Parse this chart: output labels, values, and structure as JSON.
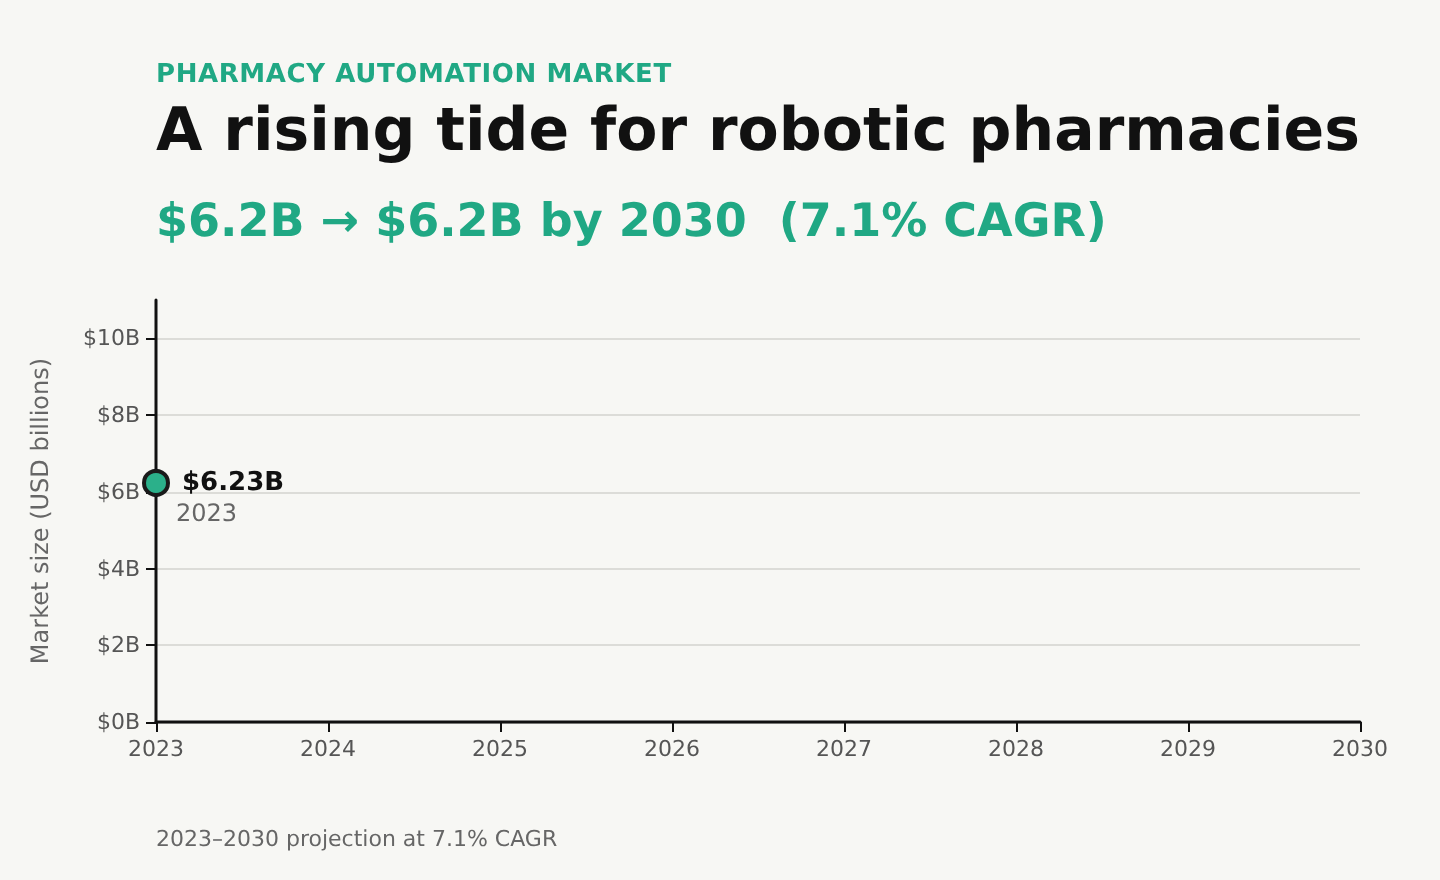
{
  "chart_data": {
    "type": "line",
    "title": "A rising tide for robotic pharmacies",
    "subtitle": "$6.2B → $6.2B by 2030  (7.1% CAGR)",
    "ylabel": "Market size (USD billions)",
    "annotations": [
      "PHARMACY AUTOMATION MARKET",
      "2023–2030 projection at 7.1% CAGR",
      {
        "text": "2023",
        "x": 2023,
        "y": 6.23
      }
    ],
    "x": [
      2023
    ],
    "series": [
      {
        "color": "#2bb08a",
        "values": [
          6.23
        ],
        "value_labels": [
          "$6.23B"
        ]
      }
    ],
    "xlim": [
      2023,
      2030
    ],
    "xticks": [
      2023,
      2024,
      2025,
      2026,
      2027,
      2028,
      2029,
      2030
    ],
    "ylim": [
      0,
      11
    ],
    "yticks": [
      {
        "value": 0,
        "label": "$0B"
      },
      {
        "value": 2,
        "label": "$2B"
      },
      {
        "value": 4,
        "label": "$4B"
      },
      {
        "value": 6,
        "label": "$6B"
      },
      {
        "value": 8,
        "label": "$8B"
      },
      {
        "value": 10,
        "label": "$10B"
      }
    ],
    "grid": "y",
    "marker": "circle"
  }
}
